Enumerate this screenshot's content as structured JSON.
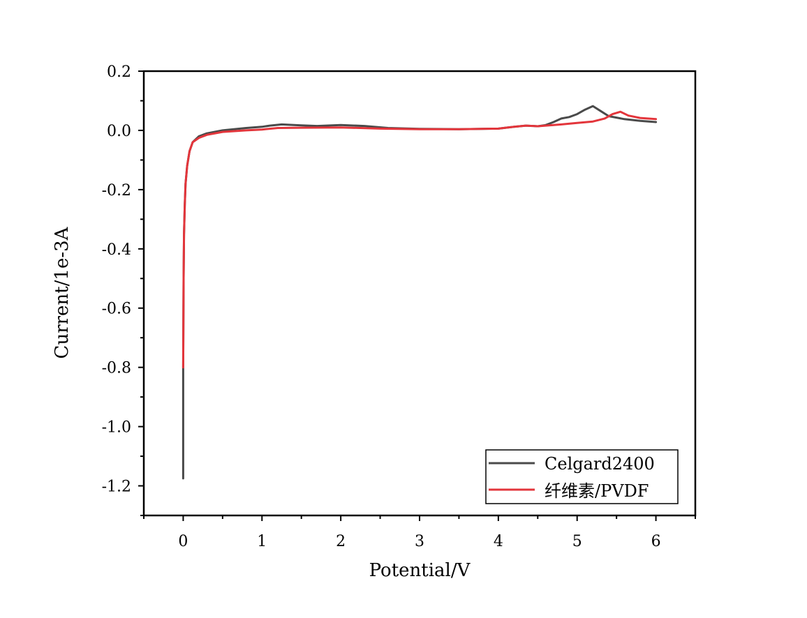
{
  "chart_data": {
    "type": "line",
    "xlabel": "Potential/V",
    "ylabel": "Current/1e-3A",
    "xlim": [
      -0.5,
      6.5
    ],
    "ylim": [
      -1.3,
      0.2
    ],
    "x_ticks": [
      0,
      1,
      2,
      3,
      4,
      5,
      6
    ],
    "x_tick_labels": [
      "0",
      "1",
      "2",
      "3",
      "4",
      "5",
      "6"
    ],
    "y_ticks": [
      0.2,
      0.0,
      -0.2,
      -0.4,
      -0.6,
      -0.8,
      -1.0,
      -1.2
    ],
    "y_tick_labels": [
      "0.2",
      "0.0",
      "-0.2",
      "-0.4",
      "-0.6",
      "-0.8",
      "-1.0",
      "-1.2"
    ],
    "grid": false,
    "legend_position": "bottom-right",
    "series": [
      {
        "name": "Celgard2400",
        "color": "#4a4a4a",
        "x": [
          0.0,
          0.0,
          0.005,
          0.01,
          0.02,
          0.03,
          0.05,
          0.08,
          0.12,
          0.2,
          0.3,
          0.5,
          0.8,
          1.0,
          1.1,
          1.25,
          1.5,
          1.7,
          2.0,
          2.3,
          2.6,
          3.0,
          3.5,
          4.0,
          4.2,
          4.35,
          4.5,
          4.6,
          4.7,
          4.8,
          4.9,
          5.0,
          5.1,
          5.2,
          5.3,
          5.4,
          5.6,
          5.8,
          6.0
        ],
        "y": [
          -1.175,
          -0.8,
          -0.5,
          -0.35,
          -0.25,
          -0.18,
          -0.12,
          -0.07,
          -0.04,
          -0.02,
          -0.01,
          0.0,
          0.008,
          0.012,
          0.016,
          0.02,
          0.017,
          0.015,
          0.018,
          0.015,
          0.008,
          0.005,
          0.004,
          0.006,
          0.012,
          0.016,
          0.014,
          0.018,
          0.028,
          0.04,
          0.045,
          0.055,
          0.07,
          0.082,
          0.065,
          0.048,
          0.038,
          0.032,
          0.028
        ]
      },
      {
        "name": "纤维素/PVDF",
        "color": "#e3353b",
        "x": [
          0.0,
          0.005,
          0.01,
          0.02,
          0.03,
          0.05,
          0.08,
          0.12,
          0.2,
          0.3,
          0.5,
          0.8,
          1.0,
          1.2,
          1.5,
          2.0,
          2.5,
          3.0,
          3.5,
          4.0,
          4.2,
          4.35,
          4.5,
          4.8,
          5.0,
          5.2,
          5.35,
          5.45,
          5.55,
          5.65,
          5.8,
          6.0
        ],
        "y": [
          -0.8,
          -0.5,
          -0.35,
          -0.25,
          -0.18,
          -0.12,
          -0.07,
          -0.04,
          -0.025,
          -0.015,
          -0.005,
          0.0,
          0.003,
          0.008,
          0.009,
          0.01,
          0.006,
          0.004,
          0.004,
          0.006,
          0.012,
          0.016,
          0.014,
          0.02,
          0.025,
          0.03,
          0.04,
          0.055,
          0.063,
          0.05,
          0.042,
          0.038
        ]
      }
    ]
  }
}
